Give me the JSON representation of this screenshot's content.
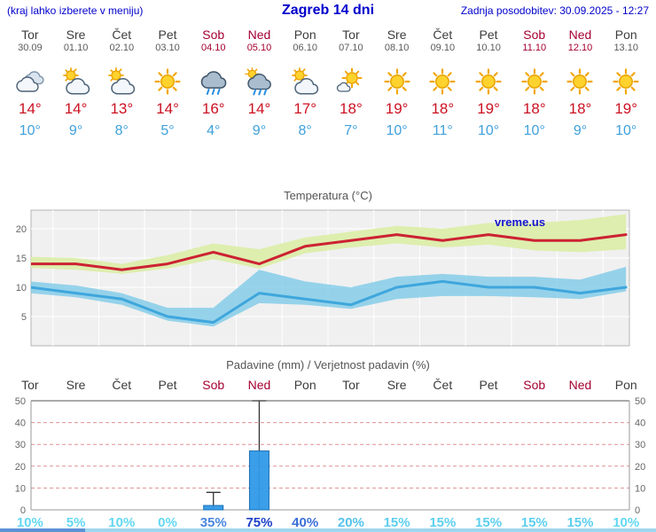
{
  "header": {
    "note": "(kraj lahko izberete v meniju)",
    "title": "Zagreb 14 dni",
    "updated": "Zadnja posodobitev: 30.09.2025 - 12:27"
  },
  "colors": {
    "link_blue": "#0000cc",
    "weekend_red": "#a50030",
    "high_temp_red": "#cc1122",
    "low_temp_blue": "#3fa0dc",
    "chart_bg": "#f0f0f0",
    "watermark_blue": "#1515cc"
  },
  "days": [
    {
      "name": "Tor",
      "date": "30.09",
      "weekend": false,
      "icon": "cloudy",
      "high": "14°",
      "low": "10°"
    },
    {
      "name": "Sre",
      "date": "01.10",
      "weekend": false,
      "icon": "sun-cloud",
      "high": "14°",
      "low": "9°"
    },
    {
      "name": "Čet",
      "date": "02.10",
      "weekend": false,
      "icon": "sun-cloud",
      "high": "13°",
      "low": "8°"
    },
    {
      "name": "Pet",
      "date": "03.10",
      "weekend": false,
      "icon": "sun",
      "high": "14°",
      "low": "5°"
    },
    {
      "name": "Sob",
      "date": "04.10",
      "weekend": true,
      "icon": "rain",
      "high": "16°",
      "low": "4°"
    },
    {
      "name": "Ned",
      "date": "05.10",
      "weekend": true,
      "icon": "rain-sun",
      "high": "14°",
      "low": "9°"
    },
    {
      "name": "Pon",
      "date": "06.10",
      "weekend": false,
      "icon": "sun-cloud",
      "high": "17°",
      "low": "8°"
    },
    {
      "name": "Tor",
      "date": "07.10",
      "weekend": false,
      "icon": "sun-small-cloud",
      "high": "18°",
      "low": "7°"
    },
    {
      "name": "Sre",
      "date": "08.10",
      "weekend": false,
      "icon": "sun",
      "high": "19°",
      "low": "10°"
    },
    {
      "name": "Čet",
      "date": "09.10",
      "weekend": false,
      "icon": "sun",
      "high": "18°",
      "low": "11°"
    },
    {
      "name": "Pet",
      "date": "10.10",
      "weekend": false,
      "icon": "sun",
      "high": "19°",
      "low": "10°"
    },
    {
      "name": "Sob",
      "date": "11.10",
      "weekend": true,
      "icon": "sun",
      "high": "18°",
      "low": "10°"
    },
    {
      "name": "Ned",
      "date": "12.10",
      "weekend": true,
      "icon": "sun",
      "high": "18°",
      "low": "9°"
    },
    {
      "name": "Pon",
      "date": "13.10",
      "weekend": false,
      "icon": "sun",
      "high": "19°",
      "low": "10°"
    }
  ],
  "chart_data": [
    {
      "type": "line",
      "title": "Temperatura (°C)",
      "watermark": "vreme.us",
      "categories": [
        "Tor 30.09",
        "Sre 01.10",
        "Čet 02.10",
        "Pet 03.10",
        "Sob 04.10",
        "Ned 05.10",
        "Pon 06.10",
        "Tor 07.10",
        "Sre 08.10",
        "Čet 09.10",
        "Pet 10.10",
        "Sob 11.10",
        "Ned 12.10",
        "Pon 13.10"
      ],
      "series": [
        {
          "name": "max temperatura",
          "color": "#cc2233",
          "values": [
            14,
            14,
            13,
            14,
            16,
            14,
            17,
            18,
            19,
            18,
            19,
            18,
            18,
            19
          ]
        },
        {
          "name": "min temperatura",
          "color": "#3fa6dc",
          "values": [
            10,
            9,
            8,
            5,
            4,
            9,
            8,
            7,
            10,
            11,
            10,
            10,
            9,
            10
          ]
        }
      ],
      "bands": [
        {
          "name": "max razpon",
          "color": "#dcedaa",
          "opacity": 0.95,
          "upper": [
            15.2,
            15.0,
            14.0,
            15.5,
            17.5,
            16.5,
            18.5,
            19.5,
            20.5,
            20.0,
            21.0,
            21.0,
            21.5,
            22.5
          ],
          "lower": [
            13.3,
            13.0,
            12.3,
            13.2,
            14.8,
            13.2,
            15.8,
            16.8,
            17.5,
            16.8,
            17.3,
            16.3,
            16.0,
            16.5
          ]
        },
        {
          "name": "min razpon",
          "color": "#7ecbe8",
          "opacity": 0.8,
          "upper": [
            11.0,
            10.3,
            9.0,
            6.5,
            6.5,
            13.0,
            11.0,
            10.0,
            11.8,
            12.3,
            11.8,
            11.8,
            11.3,
            13.5
          ],
          "lower": [
            9.0,
            8.3,
            7.0,
            4.3,
            3.3,
            7.3,
            7.0,
            6.3,
            8.0,
            8.5,
            8.5,
            8.3,
            8.0,
            9.3
          ]
        }
      ],
      "yticks": [
        5,
        10,
        15,
        20
      ],
      "ylim": [
        0,
        23.2
      ],
      "grid": true,
      "legend": "none"
    },
    {
      "type": "bar",
      "title": "Padavine (mm) / Verjetnost padavin (%)",
      "categories": [
        "Tor",
        "Sre",
        "Čet",
        "Pet",
        "Sob",
        "Ned",
        "Pon",
        "Tor",
        "Sre",
        "Čet",
        "Pet",
        "Sob",
        "Ned",
        "Pon"
      ],
      "weekend": [
        false,
        false,
        false,
        false,
        true,
        true,
        false,
        false,
        false,
        false,
        false,
        true,
        true,
        false
      ],
      "values": [
        0,
        0,
        0,
        0,
        2,
        27,
        0,
        0,
        0,
        0,
        0,
        0,
        0,
        0
      ],
      "whisker_max": [
        0,
        0,
        0,
        0,
        8,
        50,
        0,
        0,
        0,
        0,
        0,
        0,
        0,
        0
      ],
      "probabilities": [
        "10%",
        "5%",
        "10%",
        "0%",
        "35%",
        "75%",
        "40%",
        "20%",
        "15%",
        "15%",
        "15%",
        "15%",
        "15%",
        "10%"
      ],
      "prob_colors": [
        "#63d8f2",
        "#63d8f2",
        "#63d8f2",
        "#63d8f2",
        "#4a86dd",
        "#1e41c8",
        "#3c6fd6",
        "#55c2ec",
        "#5ccfef",
        "#5ccfef",
        "#5ccfef",
        "#5ccfef",
        "#5ccfef",
        "#63d8f2"
      ],
      "bar_color": "#2f99e8",
      "bar_border": "#1a6fb5",
      "yticks": [
        0,
        10,
        20,
        30,
        40,
        50
      ],
      "ylim": [
        0,
        52
      ],
      "grid": "dashed-red",
      "legend": "none"
    }
  ]
}
